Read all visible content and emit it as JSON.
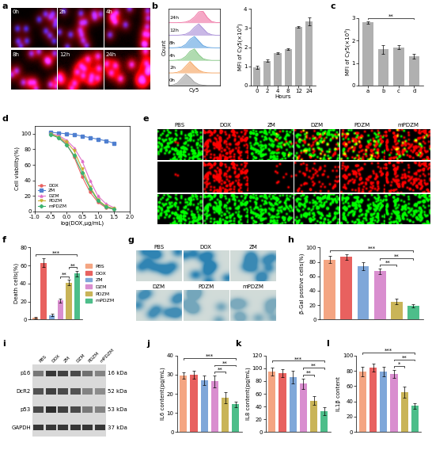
{
  "chart_data": [
    {
      "panel_label": "a",
      "type": "image_grid",
      "labels": [
        "0h",
        "2h",
        "4h",
        "8h",
        "12h",
        "24h"
      ]
    },
    {
      "panel_label": "b",
      "type": "density",
      "x_label": "Cy5",
      "y_label": "Count",
      "tick_labels": false,
      "x": [
        0,
        1,
        2,
        3,
        4,
        5,
        6,
        7,
        8,
        9,
        10,
        11,
        12
      ],
      "series": [
        {
          "name": "0h",
          "color": "#9e9e9e",
          "values": [
            0,
            0.05,
            0.2,
            0.6,
            1.0,
            0.7,
            0.3,
            0.1,
            0.03,
            0,
            0,
            0,
            0
          ]
        },
        {
          "name": "2h",
          "color": "#f5a15a",
          "values": [
            0,
            0,
            0.05,
            0.2,
            0.6,
            1.0,
            0.6,
            0.25,
            0.08,
            0.02,
            0,
            0,
            0
          ]
        },
        {
          "name": "4h",
          "color": "#7cc47c",
          "values": [
            0,
            0,
            0.03,
            0.1,
            0.35,
            0.8,
            1.0,
            0.5,
            0.15,
            0.04,
            0,
            0,
            0
          ]
        },
        {
          "name": "8h",
          "color": "#5aa0e0",
          "values": [
            0,
            0,
            0.02,
            0.08,
            0.3,
            0.75,
            1.0,
            0.6,
            0.2,
            0.05,
            0.01,
            0,
            0
          ]
        },
        {
          "name": "12h",
          "color": "#a58ad6",
          "values": [
            0,
            0,
            0,
            0.03,
            0.1,
            0.3,
            0.7,
            1.0,
            0.6,
            0.2,
            0.05,
            0,
            0
          ]
        },
        {
          "name": "24h",
          "color": "#ef6fa0",
          "values": [
            0,
            0,
            0,
            0.02,
            0.06,
            0.2,
            0.5,
            0.95,
            1.0,
            0.45,
            0.1,
            0.02,
            0
          ]
        }
      ]
    },
    {
      "type": "bar",
      "x_label": "Hours",
      "y_label": "MFI of Cy5(×10³)",
      "categories": [
        "0",
        "2",
        "4",
        "8",
        "12",
        "24"
      ],
      "values": [
        0.95,
        1.3,
        1.7,
        1.9,
        3.05,
        3.35
      ],
      "errors": [
        0.1,
        0.05,
        0.05,
        0.05,
        0.05,
        0.2
      ],
      "color": "#b0b0b0",
      "ylim": [
        0,
        4
      ],
      "yticks": [
        0,
        1,
        2,
        3,
        4
      ]
    },
    {
      "panel_label": "c",
      "type": "bar",
      "y_label": "MFI of Cy5(×10³)",
      "categories": [
        "a",
        "b",
        "c",
        "d"
      ],
      "values": [
        2.8,
        1.6,
        1.7,
        1.3
      ],
      "errors": [
        0.05,
        0.2,
        0.1,
        0.1
      ],
      "color": "#b0b0b0",
      "ylim": [
        0,
        3
      ],
      "yticks": [
        0,
        1,
        2,
        3
      ],
      "significance": [
        {
          "text": "**",
          "from": "a",
          "to": "d"
        }
      ]
    },
    {
      "panel_label": "d",
      "type": "line",
      "x_label": "log(DOX,μg/mL)",
      "y_label": "Cell viability(%)",
      "x": [
        -0.5,
        -0.25,
        0,
        0.25,
        0.5,
        0.75,
        1.0,
        1.25,
        1.5
      ],
      "xlim": [
        -1.0,
        2.0
      ],
      "xticks": [
        -1.0,
        -0.5,
        0.0,
        0.5,
        1.0,
        1.5,
        2.0
      ],
      "ylim": [
        0,
        110
      ],
      "yticks": [
        0,
        20,
        40,
        60,
        80,
        100
      ],
      "legend": "lower left",
      "series": [
        {
          "name": "DOX",
          "color": "#e8615f",
          "marker": "circle",
          "values": [
            100,
            95,
            88,
            70,
            45,
            25,
            12,
            5,
            3
          ]
        },
        {
          "name": "ZM",
          "color": "#4f7fd0",
          "marker": "square",
          "values": [
            102,
            101,
            100,
            99,
            97,
            95,
            93,
            91,
            88
          ]
        },
        {
          "name": "DZM",
          "color": "#e070c8",
          "marker": "triangle_up",
          "values": [
            100,
            98,
            92,
            82,
            65,
            40,
            20,
            10,
            5
          ]
        },
        {
          "name": "PDZM",
          "color": "#c9b030",
          "marker": "triangle_down",
          "values": [
            100,
            96,
            90,
            78,
            55,
            32,
            15,
            7,
            4
          ]
        },
        {
          "name": "mPDZM",
          "color": "#3cb371",
          "marker": "diamond",
          "values": [
            99,
            95,
            86,
            72,
            50,
            30,
            14,
            6,
            3
          ]
        }
      ]
    },
    {
      "panel_label": "e",
      "type": "image_grid",
      "labels": [
        "PBS",
        "DOX",
        "ZM",
        "DZM",
        "PDZM",
        "mPDZM"
      ]
    },
    {
      "panel_label": "f",
      "type": "bar",
      "y_label": "Death cells(%)",
      "tick_labels": "y",
      "legend": "right",
      "categories": [
        "PBS",
        "DOX",
        "ZM",
        "DZM",
        "PDZM",
        "mPDZM"
      ],
      "values": [
        2,
        63,
        5,
        21,
        41,
        51
      ],
      "errors": [
        1,
        5,
        1,
        2,
        3,
        3
      ],
      "colors": [
        "#f4a582",
        "#e8615f",
        "#7fa7d9",
        "#d98ecf",
        "#c9b458",
        "#4dbe8a"
      ],
      "ylim": [
        0,
        80
      ],
      "yticks": [
        0,
        20,
        40,
        60,
        80
      ],
      "significance": [
        {
          "text": "***",
          "from": "PBS",
          "to": "mPDZM"
        },
        {
          "text": "**",
          "from": "DZM",
          "to": "PDZM"
        },
        {
          "text": "**",
          "from": "PDZM",
          "to": "mPDZM"
        }
      ]
    },
    {
      "panel_label": "g",
      "type": "image_grid",
      "labels": [
        "PBS",
        "DOX",
        "ZM",
        "DZM",
        "PDZM",
        "mPDZM"
      ]
    },
    {
      "panel_label": "h",
      "type": "bar",
      "y_label": "β-Gal postive cells(%)",
      "tick_labels": "y",
      "categories": [
        "PBS",
        "DOX",
        "ZM",
        "DZM",
        "PDZM",
        "mPDZM"
      ],
      "values": [
        83,
        87,
        74,
        67,
        25,
        19
      ],
      "errors": [
        5,
        4,
        5,
        4,
        4,
        2
      ],
      "colors": [
        "#f4a582",
        "#e8615f",
        "#7fa7d9",
        "#d98ecf",
        "#c9b458",
        "#4dbe8a"
      ],
      "ylim": [
        0,
        100
      ],
      "yticks": [
        0,
        20,
        40,
        60,
        80,
        100
      ],
      "significance": [
        {
          "text": "***",
          "from": "PBS",
          "to": "mPDZM"
        },
        {
          "text": "**",
          "from": "DZM",
          "to": "PDZM"
        },
        {
          "text": "**",
          "from": "DZM",
          "to": "mPDZM"
        }
      ]
    },
    {
      "panel_label": "i",
      "type": "western_blot",
      "lanes": [
        "PBS",
        "DOX",
        "ZM",
        "DZM",
        "PDZM",
        "mPDZM"
      ],
      "rows": [
        {
          "name": "p16",
          "size": "16 kDa",
          "intensity": [
            0.5,
            0.85,
            0.8,
            0.75,
            0.55,
            0.45
          ]
        },
        {
          "name": "DcR2",
          "size": "52 kDa",
          "intensity": [
            0.7,
            0.8,
            0.75,
            0.7,
            0.45,
            0.4
          ]
        },
        {
          "name": "p53",
          "size": "53 kDa",
          "intensity": [
            0.75,
            0.9,
            0.8,
            0.75,
            0.5,
            0.45
          ]
        },
        {
          "name": "GAPDH",
          "size": "37 kDa",
          "intensity": [
            0.85,
            0.85,
            0.85,
            0.85,
            0.85,
            0.85
          ]
        }
      ]
    },
    {
      "panel_label": "j",
      "type": "bar",
      "y_label": "IL6 content(pg/mL)",
      "tick_labels": "y",
      "categories": [
        "PBS",
        "DOX",
        "ZM",
        "DZM",
        "PDZM",
        "mPDZM"
      ],
      "values": [
        29.5,
        30,
        27,
        26.5,
        18,
        14.5
      ],
      "errors": [
        1.5,
        2,
        2.5,
        3,
        3,
        1.5
      ],
      "colors": [
        "#f4a582",
        "#e8615f",
        "#7fa7d9",
        "#d98ecf",
        "#c9b458",
        "#4dbe8a"
      ],
      "ylim": [
        0,
        40
      ],
      "yticks": [
        0,
        10,
        20,
        30,
        40
      ],
      "significance": [
        {
          "text": "***",
          "from": "PBS",
          "to": "mPDZM"
        },
        {
          "text": "**",
          "from": "DZM",
          "to": "PDZM"
        },
        {
          "text": "**",
          "from": "DZM",
          "to": "mPDZM"
        }
      ]
    },
    {
      "panel_label": "k",
      "type": "bar",
      "y_label": "IL8 content(pg/mL)",
      "tick_labels": "y",
      "categories": [
        "PBS",
        "DOX",
        "ZM",
        "DZM",
        "PDZM",
        "mPDZM"
      ],
      "values": [
        95,
        92,
        86,
        76,
        49,
        33
      ],
      "errors": [
        6,
        6,
        10,
        8,
        7,
        6
      ],
      "colors": [
        "#f4a582",
        "#e8615f",
        "#7fa7d9",
        "#d98ecf",
        "#c9b458",
        "#4dbe8a"
      ],
      "ylim": [
        0,
        120
      ],
      "yticks": [
        0,
        20,
        40,
        60,
        80,
        100,
        120
      ],
      "significance": [
        {
          "text": "***",
          "from": "PBS",
          "to": "mPDZM"
        },
        {
          "text": "**",
          "from": "DZM",
          "to": "PDZM"
        },
        {
          "text": "**",
          "from": "DZM",
          "to": "mPDZM"
        }
      ]
    },
    {
      "panel_label": "l",
      "type": "bar",
      "y_label": "IL1β content",
      "tick_labels": "y",
      "categories": [
        "PBS",
        "DOX",
        "ZM",
        "DZM",
        "PDZM",
        "mPDZM"
      ],
      "values": [
        79,
        84,
        79,
        76,
        52,
        34
      ],
      "errors": [
        6,
        5,
        6,
        5,
        7,
        4
      ],
      "colors": [
        "#f4a582",
        "#e8615f",
        "#7fa7d9",
        "#d98ecf",
        "#c9b458",
        "#4dbe8a"
      ],
      "ylim": [
        0,
        100
      ],
      "yticks": [
        0,
        20,
        40,
        60,
        80,
        100
      ],
      "significance": [
        {
          "text": "***",
          "from": "PBS",
          "to": "mPDZM"
        },
        {
          "text": "*",
          "from": "DZM",
          "to": "PDZM"
        },
        {
          "text": "**",
          "from": "DZM",
          "to": "mPDZM"
        }
      ]
    }
  ]
}
